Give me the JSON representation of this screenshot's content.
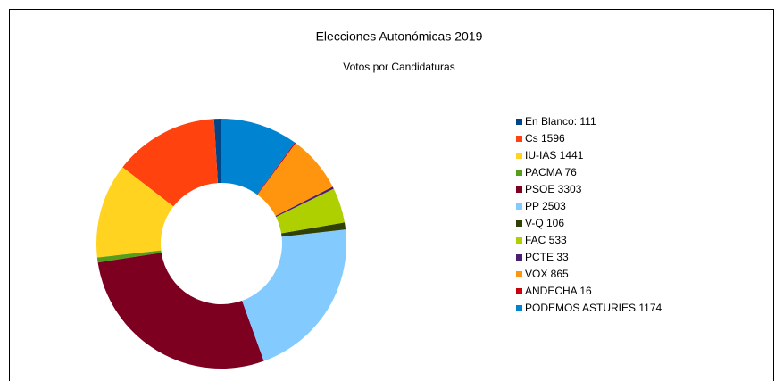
{
  "chart_data": {
    "type": "donut",
    "title": "Elecciones Autonómicas 2019",
    "subtitle": "Votos por Candidaturas",
    "categories": [
      "En Blanco: 111",
      "Cs 1596",
      "IU-IAS 1441",
      "PACMA 76",
      "PSOE 3303",
      "PP 2503",
      "V-Q 106",
      "FAC 533",
      "PCTE 33",
      "VOX 865",
      "ANDECHA 16",
      "PODEMOS ASTURIES 1174"
    ],
    "values": [
      111,
      1596,
      1441,
      76,
      3303,
      2503,
      106,
      533,
      33,
      865,
      16,
      1174
    ],
    "colors": [
      "#004586",
      "#ff420e",
      "#ffd320",
      "#579d1c",
      "#7e0021",
      "#83caff",
      "#314004",
      "#aecf00",
      "#4b1f6f",
      "#ff950e",
      "#c5000b",
      "#0084d1"
    ],
    "legend": "right"
  }
}
